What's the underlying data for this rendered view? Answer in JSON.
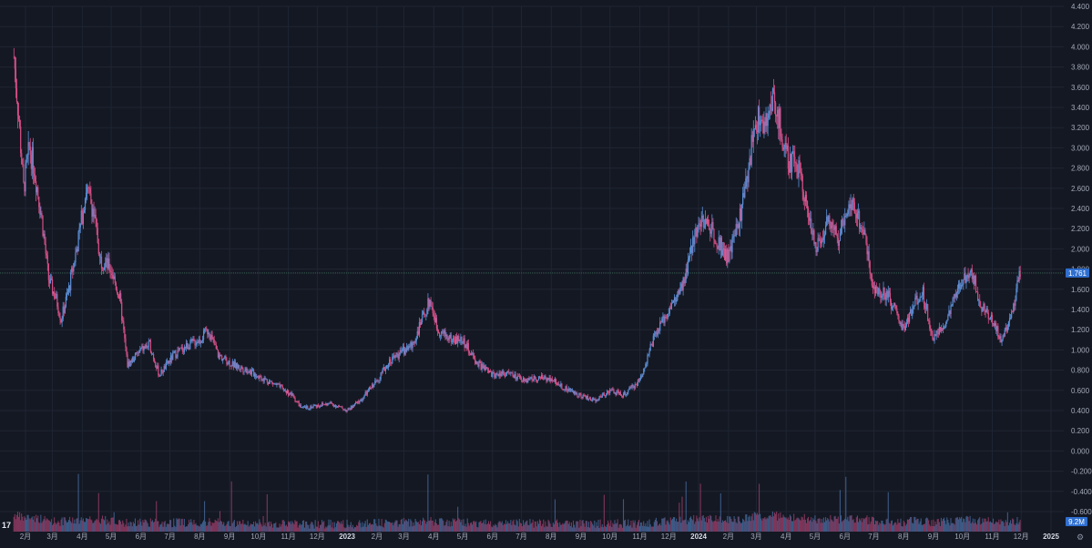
{
  "chart_data": {
    "type": "candlestick",
    "y_ticks": [
      "4.400",
      "4.200",
      "4.000",
      "3.800",
      "3.600",
      "3.400",
      "3.200",
      "3.000",
      "2.800",
      "2.600",
      "2.400",
      "2.200",
      "2.000",
      "1.800",
      "1.600",
      "1.400",
      "1.200",
      "1.000",
      "0.800",
      "0.600",
      "0.400",
      "0.200",
      "0.000",
      "-0.200",
      "-0.400",
      "-0.600"
    ],
    "ylim": [
      -0.6,
      4.4
    ],
    "x_ticks": [
      "2月",
      "3月",
      "4月",
      "5月",
      "6月",
      "7月",
      "8月",
      "9月",
      "10月",
      "11月",
      "12月",
      "2023",
      "2月",
      "3月",
      "4月",
      "5月",
      "6月",
      "7月",
      "8月",
      "9月",
      "10月",
      "11月",
      "12月",
      "2024",
      "2月",
      "3月",
      "4月",
      "5月",
      "6月",
      "7月",
      "8月",
      "9月",
      "10月",
      "11月",
      "12月",
      "2025"
    ],
    "bold_ticks": [
      "2023",
      "2024",
      "2025"
    ],
    "last_price": "1.761",
    "last_price_value": 1.761,
    "volume_label": "9.2M",
    "colors": {
      "up": "#5b8fd6",
      "down": "#d64f86",
      "grid": "#1f2533",
      "badge": "#2f6fd0",
      "volume_badge": "#2f6fd0"
    },
    "price_path": [
      {
        "x": "2022-01-20",
        "y": 3.9
      },
      {
        "x": "2022-01-25",
        "y": 3.3
      },
      {
        "x": "2022-01-30",
        "y": 2.6
      },
      {
        "x": "2022-02-05",
        "y": 3.0
      },
      {
        "x": "2022-02-10",
        "y": 2.8
      },
      {
        "x": "2022-02-18",
        "y": 2.3
      },
      {
        "x": "2022-02-25",
        "y": 1.7
      },
      {
        "x": "2022-03-05",
        "y": 1.5
      },
      {
        "x": "2022-03-10",
        "y": 1.3
      },
      {
        "x": "2022-03-18",
        "y": 1.6
      },
      {
        "x": "2022-03-28",
        "y": 2.1
      },
      {
        "x": "2022-04-05",
        "y": 2.6
      },
      {
        "x": "2022-04-12",
        "y": 2.4
      },
      {
        "x": "2022-04-20",
        "y": 1.9
      },
      {
        "x": "2022-05-01",
        "y": 1.8
      },
      {
        "x": "2022-05-10",
        "y": 1.5
      },
      {
        "x": "2022-05-18",
        "y": 0.85
      },
      {
        "x": "2022-06-01",
        "y": 1.0
      },
      {
        "x": "2022-06-10",
        "y": 1.05
      },
      {
        "x": "2022-06-20",
        "y": 0.75
      },
      {
        "x": "2022-07-05",
        "y": 0.95
      },
      {
        "x": "2022-07-20",
        "y": 1.05
      },
      {
        "x": "2022-08-01",
        "y": 1.1
      },
      {
        "x": "2022-08-10",
        "y": 1.2
      },
      {
        "x": "2022-08-20",
        "y": 0.95
      },
      {
        "x": "2022-09-05",
        "y": 0.85
      },
      {
        "x": "2022-09-20",
        "y": 0.8
      },
      {
        "x": "2022-10-05",
        "y": 0.72
      },
      {
        "x": "2022-10-20",
        "y": 0.65
      },
      {
        "x": "2022-11-05",
        "y": 0.55
      },
      {
        "x": "2022-11-15",
        "y": 0.42
      },
      {
        "x": "2022-12-01",
        "y": 0.45
      },
      {
        "x": "2022-12-15",
        "y": 0.47
      },
      {
        "x": "2023-01-01",
        "y": 0.4
      },
      {
        "x": "2023-01-15",
        "y": 0.5
      },
      {
        "x": "2023-02-01",
        "y": 0.7
      },
      {
        "x": "2023-02-15",
        "y": 0.9
      },
      {
        "x": "2023-03-01",
        "y": 1.0
      },
      {
        "x": "2023-03-10",
        "y": 1.05
      },
      {
        "x": "2023-03-20",
        "y": 1.3
      },
      {
        "x": "2023-03-28",
        "y": 1.5
      },
      {
        "x": "2023-04-05",
        "y": 1.2
      },
      {
        "x": "2023-04-20",
        "y": 1.1
      },
      {
        "x": "2023-05-01",
        "y": 1.1
      },
      {
        "x": "2023-05-15",
        "y": 0.88
      },
      {
        "x": "2023-06-01",
        "y": 0.75
      },
      {
        "x": "2023-06-15",
        "y": 0.78
      },
      {
        "x": "2023-07-01",
        "y": 0.7
      },
      {
        "x": "2023-07-15",
        "y": 0.72
      },
      {
        "x": "2023-08-01",
        "y": 0.72
      },
      {
        "x": "2023-08-15",
        "y": 0.62
      },
      {
        "x": "2023-09-01",
        "y": 0.55
      },
      {
        "x": "2023-09-15",
        "y": 0.5
      },
      {
        "x": "2023-10-01",
        "y": 0.6
      },
      {
        "x": "2023-10-15",
        "y": 0.55
      },
      {
        "x": "2023-11-01",
        "y": 0.7
      },
      {
        "x": "2023-11-15",
        "y": 1.1
      },
      {
        "x": "2023-12-01",
        "y": 1.4
      },
      {
        "x": "2023-12-15",
        "y": 1.6
      },
      {
        "x": "2024-01-01",
        "y": 2.3
      },
      {
        "x": "2024-01-15",
        "y": 2.2
      },
      {
        "x": "2024-02-01",
        "y": 1.9
      },
      {
        "x": "2024-02-15",
        "y": 2.4
      },
      {
        "x": "2024-03-01",
        "y": 3.3
      },
      {
        "x": "2024-03-10",
        "y": 3.2
      },
      {
        "x": "2024-03-20",
        "y": 3.5
      },
      {
        "x": "2024-04-01",
        "y": 2.9
      },
      {
        "x": "2024-04-15",
        "y": 2.8
      },
      {
        "x": "2024-05-01",
        "y": 2.0
      },
      {
        "x": "2024-05-15",
        "y": 2.3
      },
      {
        "x": "2024-05-25",
        "y": 2.1
      },
      {
        "x": "2024-06-05",
        "y": 2.5
      },
      {
        "x": "2024-06-20",
        "y": 2.2
      },
      {
        "x": "2024-07-01",
        "y": 1.6
      },
      {
        "x": "2024-07-15",
        "y": 1.55
      },
      {
        "x": "2024-08-01",
        "y": 1.2
      },
      {
        "x": "2024-08-10",
        "y": 1.4
      },
      {
        "x": "2024-08-20",
        "y": 1.6
      },
      {
        "x": "2024-09-01",
        "y": 1.1
      },
      {
        "x": "2024-09-15",
        "y": 1.3
      },
      {
        "x": "2024-10-01",
        "y": 1.7
      },
      {
        "x": "2024-10-10",
        "y": 1.8
      },
      {
        "x": "2024-10-20",
        "y": 1.45
      },
      {
        "x": "2024-11-01",
        "y": 1.3
      },
      {
        "x": "2024-11-10",
        "y": 1.1
      },
      {
        "x": "2024-11-20",
        "y": 1.3
      },
      {
        "x": "2024-11-30",
        "y": 1.761
      }
    ]
  }
}
